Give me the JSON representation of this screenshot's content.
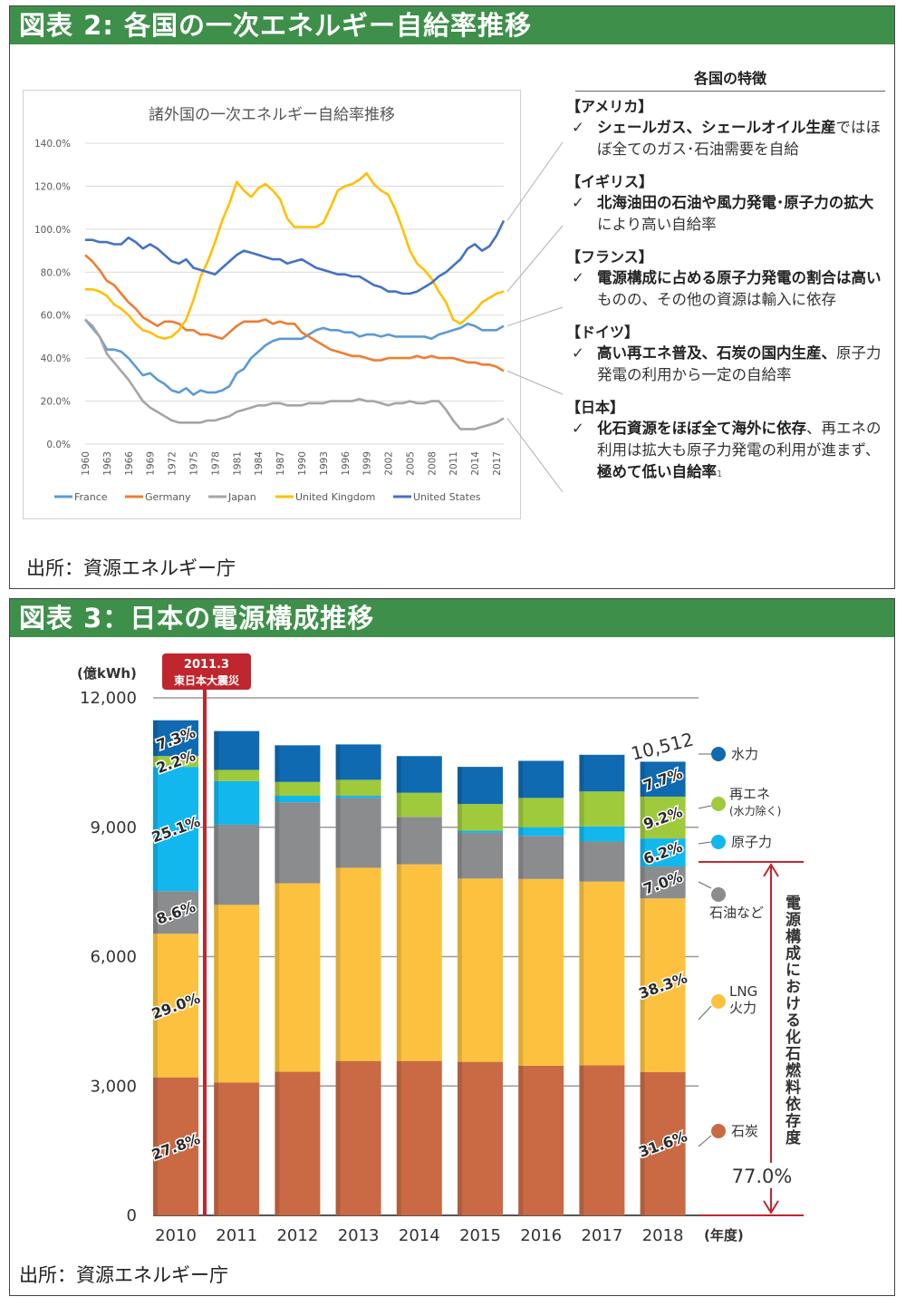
{
  "panel1": {
    "banner_title": "図表 2: 各国の一次エネルギー自給率推移",
    "source": "出所：資源エネルギー庁",
    "features": {
      "heading": "各国の特徴",
      "items": [
        {
          "country": "【アメリカ】",
          "segments": [
            {
              "t": "シェールガス、シェールオイル生産",
              "b": true
            },
            {
              "t": "ではほぼ全てのガス･石油需要を自給",
              "b": false
            }
          ]
        },
        {
          "country": "【イギリス】",
          "segments": [
            {
              "t": "北海油田の石油や風力発電･原子力の拡大",
              "b": true
            },
            {
              "t": "により高い自給率",
              "b": false
            }
          ]
        },
        {
          "country": "【フランス】",
          "segments": [
            {
              "t": "電源構成に占める原子力発電の割合は高い",
              "b": true
            },
            {
              "t": "ものの、その他の資源は輸入に依存",
              "b": false
            }
          ]
        },
        {
          "country": "【ドイツ】",
          "segments": [
            {
              "t": "高い再エネ普及、石炭の国内生産、",
              "b": true
            },
            {
              "t": "原子力発電の利用から一定の自給率",
              "b": false
            }
          ]
        },
        {
          "country": "【日本】",
          "segments": [
            {
              "t": "化石資源をほぼ全て海外に依存",
              "b": true
            },
            {
              "t": "、再エネの利用は拡大も原子力発電の利用が進まず、",
              "b": false
            },
            {
              "t": "極めて低い自給率",
              "b": true
            },
            {
              "t": "1",
              "b": false
            }
          ]
        }
      ],
      "check_mark": "✓"
    }
  },
  "panel2": {
    "banner_title": "図表 3：日本の電源構成推移",
    "source": "出所：資源エネルギー庁"
  },
  "chart_data": [
    {
      "type": "line",
      "title": "諸外国の一次エネルギー自給率推移",
      "x": [
        1960,
        1961,
        1962,
        1963,
        1964,
        1965,
        1966,
        1967,
        1968,
        1969,
        1970,
        1971,
        1972,
        1973,
        1974,
        1975,
        1976,
        1977,
        1978,
        1979,
        1980,
        1981,
        1982,
        1983,
        1984,
        1985,
        1986,
        1987,
        1988,
        1989,
        1990,
        1991,
        1992,
        1993,
        1994,
        1995,
        1996,
        1997,
        1998,
        1999,
        2000,
        2001,
        2002,
        2003,
        2004,
        2005,
        2006,
        2007,
        2008,
        2009,
        2010,
        2011,
        2012,
        2013,
        2014,
        2015,
        2016,
        2017,
        2018
      ],
      "x_ticks": [
        "1960",
        "1963",
        "1966",
        "1969",
        "1972",
        "1975",
        "1978",
        "1981",
        "1984",
        "1987",
        "1990",
        "1993",
        "1996",
        "1999",
        "2002",
        "2005",
        "2008",
        "2011",
        "2014",
        "2017"
      ],
      "y_ticks": [
        "140.0%",
        "120.0%",
        "100.0%",
        "80.0%",
        "60.0%",
        "40.0%",
        "20.0%",
        "0.0%"
      ],
      "ylim": [
        0,
        140
      ],
      "grid": true,
      "legend_position": "bottom",
      "series": [
        {
          "name": "France",
          "color": "#5b9bd5",
          "values": [
            58,
            54,
            50,
            44,
            44,
            43,
            40,
            36,
            32,
            33,
            30,
            28,
            25,
            24,
            26,
            23,
            25,
            24,
            24,
            25,
            27,
            33,
            35,
            40,
            43,
            46,
            48,
            49,
            49,
            49,
            49,
            51,
            53,
            54,
            53,
            53,
            52,
            52,
            50,
            51,
            51,
            50,
            51,
            50,
            50,
            50,
            50,
            50,
            49,
            51,
            52,
            53,
            54,
            56,
            55,
            53,
            53,
            53,
            55
          ]
        },
        {
          "name": "Germany",
          "color": "#ed7d31",
          "values": [
            88,
            85,
            81,
            76,
            74,
            70,
            66,
            63,
            59,
            57,
            55,
            57,
            57,
            56,
            53,
            53,
            51,
            51,
            50,
            49,
            52,
            55,
            57,
            57,
            57,
            58,
            56,
            57,
            56,
            56,
            52,
            50,
            48,
            46,
            44,
            43,
            42,
            41,
            41,
            40,
            39,
            39,
            40,
            40,
            40,
            40,
            41,
            40,
            41,
            40,
            40,
            40,
            39,
            38,
            38,
            37,
            37,
            36,
            34
          ]
        },
        {
          "name": "Japan",
          "color": "#a5a5a5",
          "values": [
            58,
            55,
            50,
            42,
            38,
            34,
            30,
            25,
            20,
            17,
            15,
            13,
            11,
            10,
            10,
            10,
            10,
            11,
            11,
            12,
            13,
            15,
            16,
            17,
            18,
            18,
            19,
            19,
            18,
            18,
            18,
            19,
            19,
            19,
            20,
            20,
            20,
            20,
            21,
            20,
            20,
            19,
            18,
            19,
            19,
            20,
            19,
            19,
            20,
            20,
            16,
            11,
            7,
            7,
            7,
            8,
            9,
            10,
            12
          ]
        },
        {
          "name": "United Kingdom",
          "color": "#ffc000",
          "values": [
            72,
            72,
            71,
            69,
            65,
            63,
            60,
            56,
            53,
            52,
            50,
            49,
            50,
            53,
            58,
            67,
            78,
            85,
            94,
            104,
            112,
            122,
            118,
            115,
            119,
            121,
            118,
            114,
            105,
            101,
            101,
            101,
            101,
            103,
            110,
            118,
            120,
            121,
            123,
            126,
            121,
            118,
            116,
            109,
            100,
            90,
            84,
            81,
            77,
            71,
            66,
            58,
            56,
            59,
            62,
            66,
            68,
            70,
            71
          ]
        },
        {
          "name": "United States",
          "color": "#4472c4",
          "values": [
            95,
            95,
            94,
            94,
            93,
            93,
            96,
            94,
            91,
            93,
            91,
            88,
            85,
            84,
            86,
            82,
            81,
            80,
            79,
            82,
            85,
            88,
            90,
            89,
            88,
            87,
            86,
            86,
            84,
            85,
            86,
            84,
            82,
            81,
            80,
            79,
            79,
            78,
            78,
            76,
            74,
            73,
            71,
            71,
            70,
            70,
            71,
            73,
            75,
            78,
            80,
            83,
            86,
            91,
            93,
            90,
            92,
            97,
            104
          ]
        }
      ]
    },
    {
      "type": "bar",
      "stacked": true,
      "ylabel": "(億kWh)",
      "ylim": [
        0,
        12000
      ],
      "y_ticks": [
        "12,000",
        "9,000",
        "6,000",
        "3,000",
        "0"
      ],
      "categories": [
        "2010",
        "2011",
        "2012",
        "2013",
        "2014",
        "2015",
        "2016",
        "2017",
        "2018"
      ],
      "x_unit": "(年度)",
      "total_2018": "10,512",
      "event": {
        "line1": "2011.3",
        "line2": "東日本大震災",
        "color": "#c0262d"
      },
      "bracket": {
        "label": "電源構成における化石燃料依存度",
        "value": "77.0%",
        "color": "#c0262d"
      },
      "series": [
        {
          "name": "石炭",
          "color": "#c96a45",
          "values": [
            3200,
            3080,
            3330,
            3580,
            3580,
            3560,
            3470,
            3480,
            3320
          ]
        },
        {
          "name": "LNG火力",
          "color": "#fcc23f",
          "values": [
            3330,
            4120,
            4370,
            4480,
            4560,
            4250,
            4330,
            4260,
            4030
          ]
        },
        {
          "name": "石油など",
          "color": "#8b8c8e",
          "values": [
            990,
            1860,
            1880,
            1620,
            1100,
            1060,
            1000,
            930,
            740
          ]
        },
        {
          "name": "原子力",
          "color": "#12b7ee",
          "values": [
            2880,
            1010,
            150,
            50,
            0,
            50,
            200,
            350,
            650
          ]
        },
        {
          "name": "再エネ(水力除く)",
          "color": "#9fca3c",
          "values": [
            250,
            260,
            320,
            370,
            560,
            620,
            680,
            810,
            970
          ]
        },
        {
          "name": "水力",
          "color": "#0f6ab1",
          "values": [
            830,
            900,
            850,
            820,
            850,
            860,
            860,
            850,
            810
          ]
        }
      ],
      "legend_labels": [
        "水力",
        "再エネ",
        "(水力除く)",
        "原子力",
        "石油など",
        "LNG",
        "火力",
        "石炭"
      ],
      "pct_labels_2010": [
        "27.8%",
        "29.0%",
        "8.6%",
        "25.1%",
        "2.2%",
        "7.3%"
      ],
      "pct_labels_2018": [
        "31.6%",
        "38.3%",
        "7.0%",
        "6.2%",
        "9.2%",
        "7.7%"
      ]
    }
  ]
}
